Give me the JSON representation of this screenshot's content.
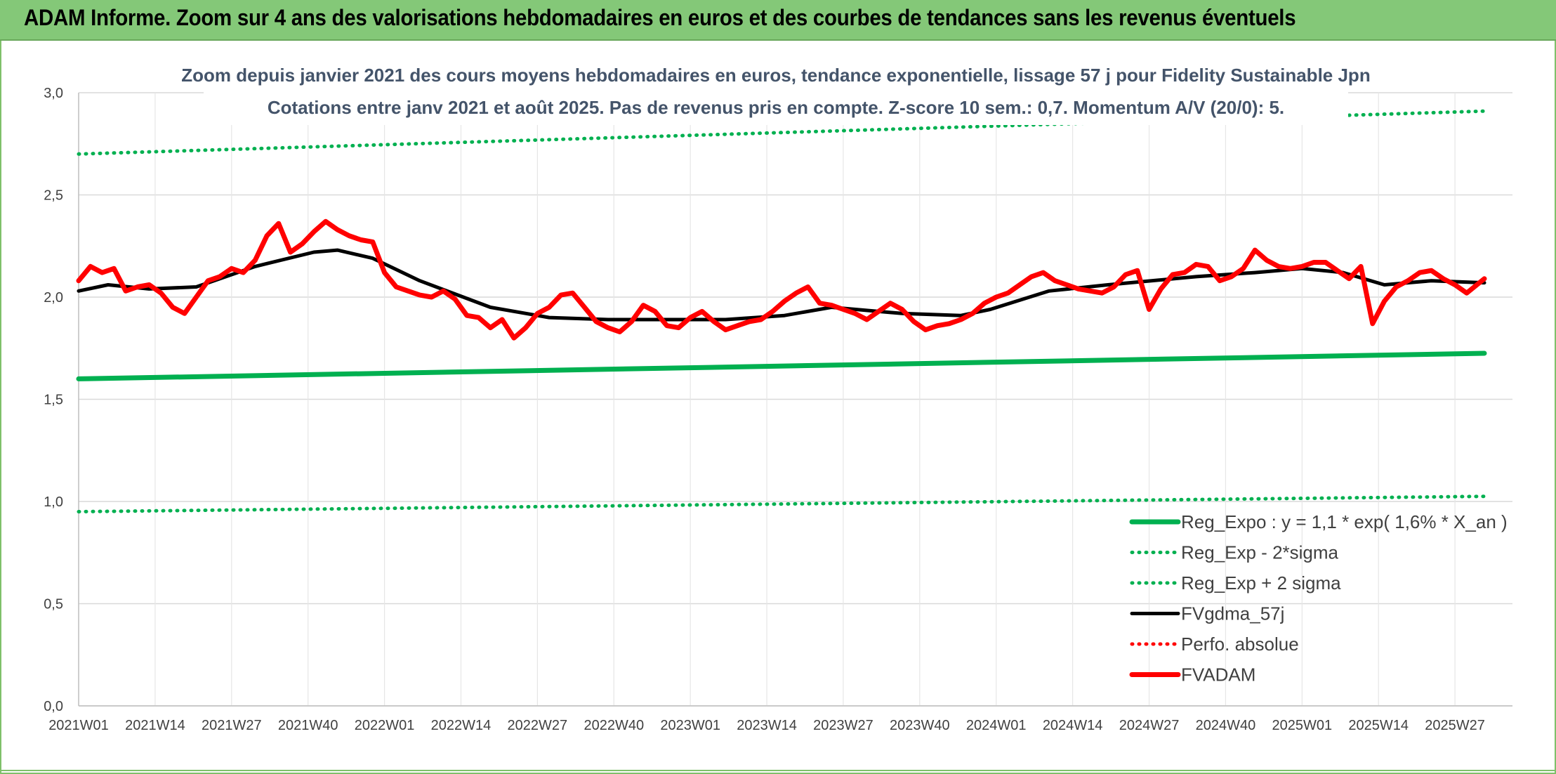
{
  "banner": {
    "title": "ADAM Informe. Zoom sur 4 ans des valorisations hebdomadaires en euros et des courbes de tendances sans les revenus éventuels"
  },
  "colors": {
    "banner_bg": "#84c878",
    "trend": "#00b050",
    "ma": "#000000",
    "price": "#ff0000"
  },
  "chart_data": {
    "type": "line",
    "title": "Zoom depuis janvier 2021 des cours moyens hebdomadaires en euros, tendance exponentielle, lissage 57 j pour Fidelity Sustainable Jpn",
    "subtitle": "Cotations entre janv 2021 et août 2025. Pas de revenus pris en compte. Z-score 10 sem.: 0,7. Momentum A/V (20/0): 5.",
    "xlabel": "",
    "ylabel": "",
    "ylim": [
      0,
      3
    ],
    "yticks": [
      "0,0",
      "0,5",
      "1,0",
      "1,5",
      "2,0",
      "2,5",
      "3,0"
    ],
    "grid": true,
    "legend_position": "bottom-right",
    "x_tick_labels": [
      "2021W01",
      "2021W14",
      "2021W27",
      "2021W40",
      "2022W01",
      "2022W14",
      "2022W27",
      "2022W40",
      "2023W01",
      "2023W14",
      "2023W27",
      "2023W40",
      "2024W01",
      "2024W14",
      "2024W27",
      "2024W40",
      "2025W01",
      "2025W14",
      "2025W27"
    ],
    "x_tick_weeks": [
      0,
      13,
      26,
      39,
      52,
      65,
      78,
      91,
      104,
      117,
      130,
      143,
      156,
      169,
      182,
      195,
      208,
      221,
      234
    ],
    "weeks_count": 240,
    "series": [
      {
        "name": "Reg_Expo : y = 1,1 * exp( 1,6% *  X_an )",
        "style": "solid-thick",
        "color": "#00b050",
        "x_weeks": [
          0,
          239
        ],
        "values": [
          1.6,
          1.725
        ]
      },
      {
        "name": "Reg_Exp - 2*sigma",
        "style": "dotted",
        "color": "#00b050",
        "x_weeks": [
          0,
          239
        ],
        "values": [
          0.95,
          1.025
        ]
      },
      {
        "name": "Reg_Exp + 2 sigma",
        "style": "dotted",
        "color": "#00b050",
        "x_weeks": [
          0,
          239
        ],
        "values": [
          2.7,
          2.91
        ]
      },
      {
        "name": "FVgdma_57j",
        "style": "solid",
        "color": "#000000",
        "x_weeks": [
          0,
          5,
          12,
          20,
          30,
          40,
          44,
          50,
          58,
          70,
          80,
          90,
          100,
          110,
          120,
          128,
          140,
          150,
          155,
          165,
          175,
          190,
          200,
          208,
          215,
          222,
          230,
          239
        ],
        "values": [
          2.03,
          2.06,
          2.04,
          2.05,
          2.15,
          2.22,
          2.23,
          2.19,
          2.08,
          1.95,
          1.9,
          1.89,
          1.89,
          1.89,
          1.91,
          1.95,
          1.92,
          1.91,
          1.94,
          2.03,
          2.06,
          2.1,
          2.12,
          2.14,
          2.12,
          2.06,
          2.08,
          2.07
        ]
      },
      {
        "name": "Perfo. absolue",
        "style": "dotted",
        "color": "#ff0000",
        "x_weeks": [],
        "values": []
      },
      {
        "name": "FVADAM",
        "style": "solid-thick",
        "color": "#ff0000",
        "x_weeks": [
          0,
          2,
          4,
          6,
          8,
          10,
          12,
          14,
          16,
          18,
          20,
          22,
          24,
          26,
          28,
          30,
          32,
          34,
          36,
          38,
          40,
          42,
          44,
          46,
          48,
          50,
          52,
          54,
          56,
          58,
          60,
          62,
          64,
          66,
          68,
          70,
          72,
          74,
          76,
          78,
          80,
          82,
          84,
          86,
          88,
          90,
          92,
          94,
          96,
          98,
          100,
          102,
          104,
          106,
          108,
          110,
          112,
          114,
          116,
          118,
          120,
          122,
          124,
          126,
          128,
          130,
          132,
          134,
          136,
          138,
          140,
          142,
          144,
          146,
          148,
          150,
          152,
          154,
          156,
          158,
          160,
          162,
          164,
          166,
          168,
          170,
          172,
          174,
          176,
          178,
          180,
          182,
          184,
          186,
          188,
          190,
          192,
          194,
          196,
          198,
          200,
          202,
          204,
          206,
          208,
          210,
          212,
          214,
          216,
          218,
          220,
          222,
          224,
          226,
          228,
          230,
          232,
          234,
          236,
          239
        ],
        "values": [
          2.08,
          2.15,
          2.12,
          2.14,
          2.03,
          2.05,
          2.06,
          2.02,
          1.95,
          1.92,
          2.0,
          2.08,
          2.1,
          2.14,
          2.12,
          2.18,
          2.3,
          2.36,
          2.22,
          2.26,
          2.32,
          2.37,
          2.33,
          2.3,
          2.28,
          2.27,
          2.12,
          2.05,
          2.03,
          2.01,
          2.0,
          2.03,
          1.99,
          1.91,
          1.9,
          1.85,
          1.89,
          1.8,
          1.85,
          1.92,
          1.95,
          2.01,
          2.02,
          1.95,
          1.88,
          1.85,
          1.83,
          1.88,
          1.96,
          1.93,
          1.86,
          1.85,
          1.9,
          1.93,
          1.88,
          1.84,
          1.86,
          1.88,
          1.89,
          1.93,
          1.98,
          2.02,
          2.05,
          1.97,
          1.96,
          1.94,
          1.92,
          1.89,
          1.93,
          1.97,
          1.94,
          1.88,
          1.84,
          1.86,
          1.87,
          1.89,
          1.92,
          1.97,
          2.0,
          2.02,
          2.06,
          2.1,
          2.12,
          2.08,
          2.06,
          2.04,
          2.03,
          2.02,
          2.05,
          2.11,
          2.13,
          1.94,
          2.04,
          2.11,
          2.12,
          2.16,
          2.15,
          2.08,
          2.1,
          2.14,
          2.23,
          2.18,
          2.15,
          2.14,
          2.15,
          2.17,
          2.17,
          2.13,
          2.09,
          2.15,
          1.87,
          1.98,
          2.05,
          2.08,
          2.12,
          2.13,
          2.09,
          2.06,
          2.02,
          2.09
        ]
      }
    ]
  }
}
